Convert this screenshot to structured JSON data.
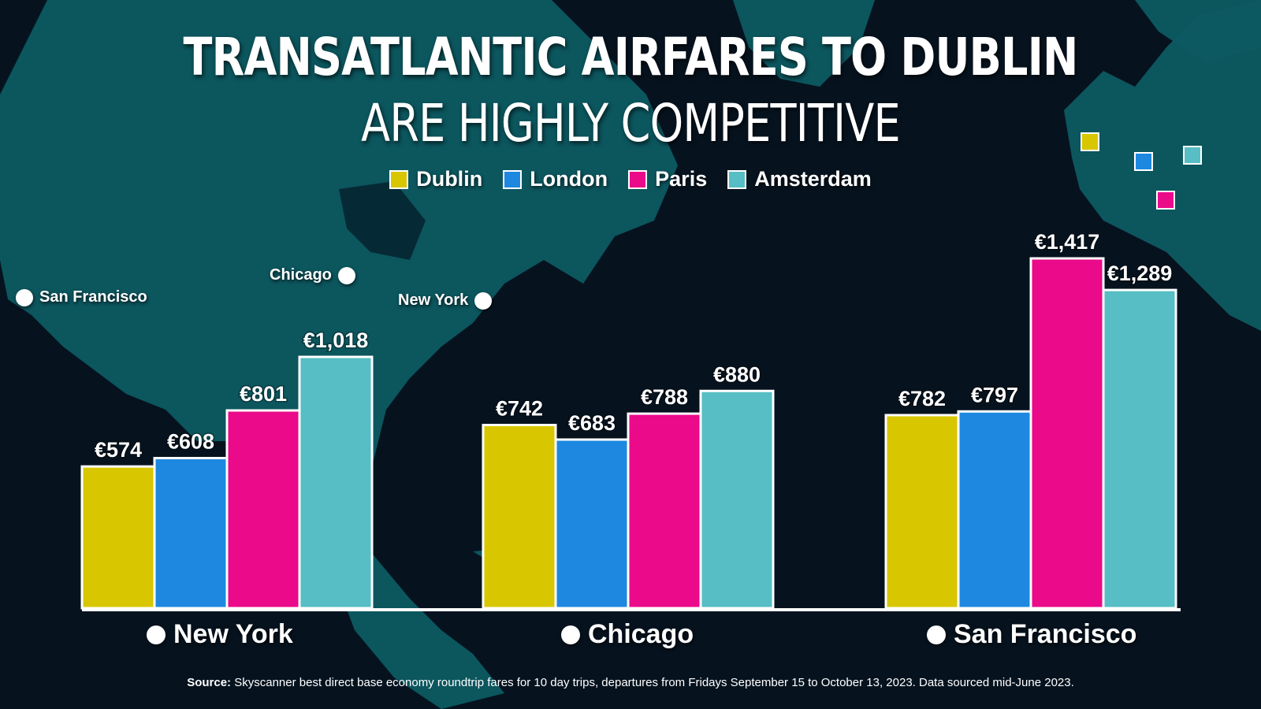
{
  "title": {
    "line1": "TRANSATLANTIC AIRFARES TO DUBLIN",
    "line2": "ARE HIGHLY COMPETITIVE"
  },
  "legend": [
    {
      "label": "Dublin",
      "color": "#d8c600"
    },
    {
      "label": "London",
      "color": "#1e88e0"
    },
    {
      "label": "Paris",
      "color": "#ea0a8a"
    },
    {
      "label": "Amsterdam",
      "color": "#56bec4"
    }
  ],
  "map_labels": {
    "san_francisco": "San Francisco",
    "chicago": "Chicago",
    "new_york": "New York"
  },
  "chart_data": {
    "type": "bar",
    "title": "TRANSATLANTIC AIRFARES TO DUBLIN ARE HIGHLY COMPETITIVE",
    "categories": [
      "New York",
      "Chicago",
      "San Francisco"
    ],
    "series": [
      {
        "name": "Dublin",
        "values": [
          574,
          742,
          782
        ],
        "labels": [
          "€574",
          "€742",
          "€782"
        ]
      },
      {
        "name": "London",
        "values": [
          608,
          683,
          797
        ],
        "labels": [
          "€608",
          "€683",
          "€797"
        ]
      },
      {
        "name": "Paris",
        "values": [
          801,
          788,
          1417
        ],
        "labels": [
          "€801",
          "€788",
          "€1,417"
        ]
      },
      {
        "name": "Amsterdam",
        "values": [
          1018,
          880,
          1289
        ],
        "labels": [
          "€1,018",
          "€880",
          "€1,289"
        ]
      }
    ],
    "colors": [
      "#d8c600",
      "#1e88e0",
      "#ea0a8a",
      "#56bec4"
    ],
    "ylim": [
      0,
      1417
    ],
    "grid": false,
    "legend_position": "top-center"
  },
  "source": {
    "prefix": "Source:",
    "text": " Skyscanner best direct base economy roundtrip fares for 10 day trips, departures from Fridays September 15 to October 13, 2023. Data sourced mid-June 2023."
  }
}
